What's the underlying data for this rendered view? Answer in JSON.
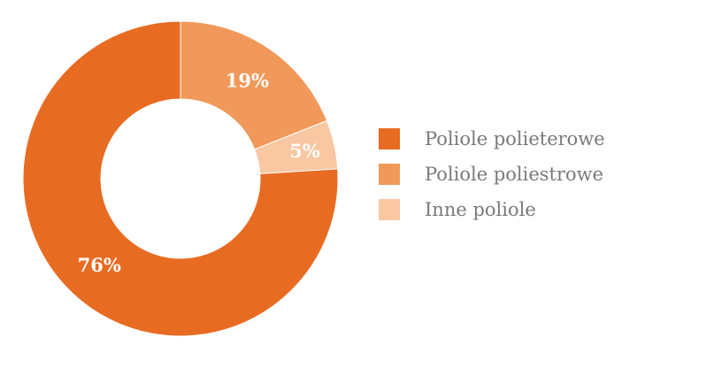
{
  "chart_data": {
    "type": "pie",
    "title": "",
    "legend_position": "right",
    "categories": [
      "Poliole polieterowe",
      "Poliole poliestrowe",
      "Inne poliole"
    ],
    "values": [
      76,
      19,
      5
    ],
    "labels": [
      "76%",
      "19%",
      "5%"
    ],
    "colors": [
      "#e86b22",
      "#f0995a",
      "#f9c7a2"
    ],
    "donut": true
  }
}
